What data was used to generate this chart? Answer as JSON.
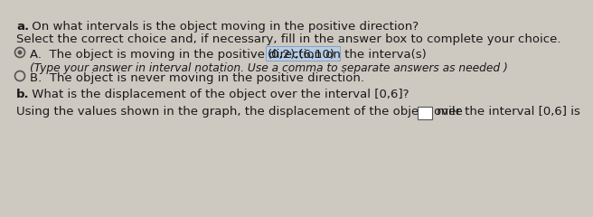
{
  "background_color": "#cdc8c0",
  "part_a_label": "a.",
  "part_a_text": " On what intervals is the object moving in the positive direction?",
  "select_text": "Select the correct choice and, if necessary, fill in the answer box to complete your choice.",
  "option_A_prefix": "A.  The object is moving in the positive direction on the interva​(s)  ",
  "option_A_highlighted": "(0,2),(6,10)",
  "option_A_sub": "(Type your answer in interval notation. Use a comma to separate answers as needed )",
  "option_B_text": "B.  The object is never moving in the positive direction.",
  "part_b_label": "b.",
  "part_b_text": " What is the displacement of the object over the interval [0,6]?",
  "bottom_prefix": "Using the values shown in the graph, the displacement of the object over the interval [0,6] is ",
  "bottom_suffix": " mile",
  "highlight_color": "#b8cce4",
  "highlight_edge": "#7a9abf",
  "text_color": "#1a1a1a",
  "radio_color": "#555555",
  "font_size_main": 9.5,
  "font_size_sub": 8.8
}
